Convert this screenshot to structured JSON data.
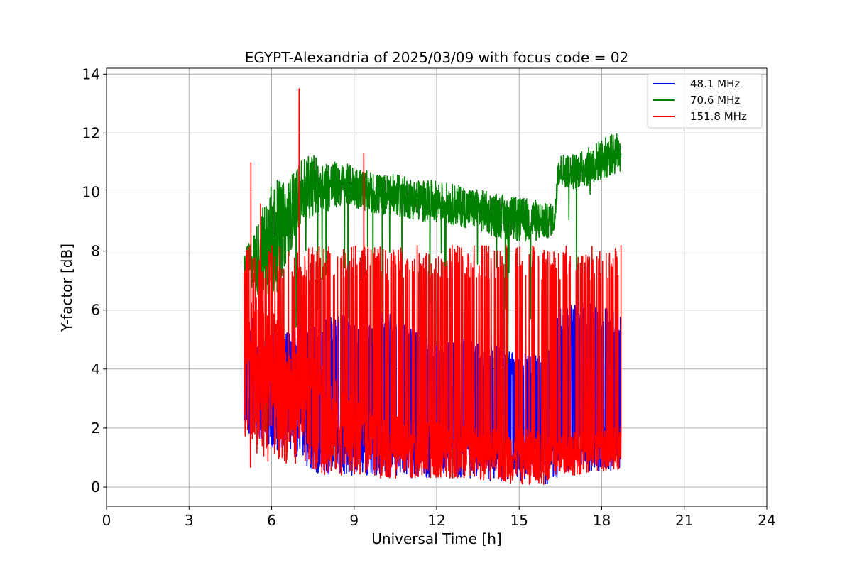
{
  "chart_data": {
    "type": "line",
    "title": "EGYPT-Alexandria of 2025/03/09 with focus code = 02",
    "xlabel": "Universal Time [h]",
    "ylabel": "Y-factor [dB]",
    "xlim": [
      0,
      24
    ],
    "ylim": [
      -0.65,
      14.2
    ],
    "xticks": [
      0,
      3,
      6,
      9,
      12,
      15,
      18,
      21,
      24
    ],
    "yticks": [
      0,
      2,
      4,
      6,
      8,
      10,
      12,
      14
    ],
    "grid": true,
    "legend_position": "top-right",
    "series": [
      {
        "name": "48.1 MHz",
        "legend_label": "  48.1 MHz",
        "color": "#0000ff",
        "envelope": [
          {
            "x": 5.0,
            "low": 1.8,
            "high": 6.0
          },
          {
            "x": 5.5,
            "low": 1.5,
            "high": 5.6
          },
          {
            "x": 6.0,
            "low": 1.3,
            "high": 5.3
          },
          {
            "x": 6.5,
            "low": 1.2,
            "high": 5.2
          },
          {
            "x": 7.0,
            "low": 1.0,
            "high": 5.7
          },
          {
            "x": 7.5,
            "low": 0.5,
            "high": 5.4
          },
          {
            "x": 8.0,
            "low": 0.4,
            "high": 5.8
          },
          {
            "x": 8.5,
            "low": 0.4,
            "high": 5.9
          },
          {
            "x": 9.0,
            "low": 0.4,
            "high": 5.6
          },
          {
            "x": 9.5,
            "low": 0.4,
            "high": 5.5
          },
          {
            "x": 10.0,
            "low": 0.4,
            "high": 5.9
          },
          {
            "x": 10.5,
            "low": 0.3,
            "high": 6.0
          },
          {
            "x": 11.0,
            "low": 0.3,
            "high": 5.4
          },
          {
            "x": 11.5,
            "low": 0.3,
            "high": 5.2
          },
          {
            "x": 12.0,
            "low": 0.3,
            "high": 5.0
          },
          {
            "x": 12.5,
            "low": 0.3,
            "high": 5.0
          },
          {
            "x": 13.0,
            "low": 0.3,
            "high": 5.0
          },
          {
            "x": 13.5,
            "low": 0.3,
            "high": 4.9
          },
          {
            "x": 14.0,
            "low": 0.2,
            "high": 4.8
          },
          {
            "x": 14.5,
            "low": 0.2,
            "high": 4.7
          },
          {
            "x": 15.0,
            "low": 0.2,
            "high": 4.6
          },
          {
            "x": 15.5,
            "low": 0.2,
            "high": 4.5
          },
          {
            "x": 16.0,
            "low": 0.1,
            "high": 4.4
          },
          {
            "x": 16.5,
            "low": 0.4,
            "high": 6.1
          },
          {
            "x": 17.0,
            "low": 0.5,
            "high": 6.2
          },
          {
            "x": 17.5,
            "low": 0.5,
            "high": 6.3
          },
          {
            "x": 18.0,
            "low": 0.5,
            "high": 6.1
          },
          {
            "x": 18.7,
            "low": 0.6,
            "high": 5.9
          }
        ]
      },
      {
        "name": "70.6 MHz",
        "legend_label": "  70.6 MHz",
        "color": "#008000",
        "envelope": [
          {
            "x": 5.0,
            "low": 7.0,
            "high": 7.9
          },
          {
            "x": 5.5,
            "low": 6.5,
            "high": 9.0
          },
          {
            "x": 6.0,
            "low": 6.0,
            "high": 10.5
          },
          {
            "x": 6.5,
            "low": 7.5,
            "high": 10.3
          },
          {
            "x": 7.0,
            "low": 8.8,
            "high": 11.0
          },
          {
            "x": 7.5,
            "low": 9.2,
            "high": 11.3
          },
          {
            "x": 8.0,
            "low": 9.3,
            "high": 11.1
          },
          {
            "x": 8.5,
            "low": 9.5,
            "high": 11.0
          },
          {
            "x": 9.0,
            "low": 9.5,
            "high": 10.9
          },
          {
            "x": 9.5,
            "low": 9.3,
            "high": 10.7
          },
          {
            "x": 10.0,
            "low": 9.2,
            "high": 10.6
          },
          {
            "x": 10.5,
            "low": 9.2,
            "high": 10.6
          },
          {
            "x": 11.0,
            "low": 9.1,
            "high": 10.5
          },
          {
            "x": 11.5,
            "low": 9.0,
            "high": 10.4
          },
          {
            "x": 12.0,
            "low": 9.0,
            "high": 10.4
          },
          {
            "x": 12.5,
            "low": 8.9,
            "high": 10.3
          },
          {
            "x": 13.0,
            "low": 8.8,
            "high": 10.2
          },
          {
            "x": 13.5,
            "low": 8.7,
            "high": 10.1
          },
          {
            "x": 14.0,
            "low": 8.5,
            "high": 10.0
          },
          {
            "x": 14.5,
            "low": 8.4,
            "high": 9.9
          },
          {
            "x": 15.0,
            "low": 8.3,
            "high": 9.8
          },
          {
            "x": 15.5,
            "low": 8.3,
            "high": 9.8
          },
          {
            "x": 16.0,
            "low": 8.4,
            "high": 9.6
          },
          {
            "x": 16.3,
            "low": 8.6,
            "high": 9.6
          },
          {
            "x": 16.4,
            "low": 10.2,
            "high": 11.3
          },
          {
            "x": 17.0,
            "low": 10.1,
            "high": 11.3
          },
          {
            "x": 17.5,
            "low": 10.2,
            "high": 11.5
          },
          {
            "x": 18.0,
            "low": 10.4,
            "high": 11.8
          },
          {
            "x": 18.7,
            "low": 10.7,
            "high": 12.1
          }
        ]
      },
      {
        "name": "151.8 MHz",
        "legend_label": "151.8 MHz",
        "color": "#ff0000",
        "envelope": [
          {
            "x": 5.0,
            "low": 0.7,
            "high": 6.9
          },
          {
            "x": 5.5,
            "low": 0.6,
            "high": 6.5
          },
          {
            "x": 6.0,
            "low": 0.9,
            "high": 6.0
          },
          {
            "x": 6.5,
            "low": 0.8,
            "high": 5.2
          },
          {
            "x": 7.0,
            "low": 0.8,
            "high": 5.0
          },
          {
            "x": 7.5,
            "low": 0.5,
            "high": 4.5
          },
          {
            "x": 8.0,
            "low": 0.4,
            "high": 4.0
          },
          {
            "x": 8.5,
            "low": 0.4,
            "high": 3.5
          },
          {
            "x": 9.0,
            "low": 0.4,
            "high": 3.0
          },
          {
            "x": 9.5,
            "low": 0.4,
            "high": 2.8
          },
          {
            "x": 10.0,
            "low": 0.3,
            "high": 2.5
          },
          {
            "x": 11.0,
            "low": 0.3,
            "high": 2.3
          },
          {
            "x": 12.0,
            "low": 0.3,
            "high": 2.2
          },
          {
            "x": 13.0,
            "low": 0.3,
            "high": 2.1
          },
          {
            "x": 14.0,
            "low": 0.2,
            "high": 2.0
          },
          {
            "x": 15.0,
            "low": 0.1,
            "high": 2.0
          },
          {
            "x": 16.0,
            "low": 0.05,
            "high": 1.9
          },
          {
            "x": 16.5,
            "low": 0.5,
            "high": 1.8
          },
          {
            "x": 17.0,
            "low": 0.4,
            "high": 1.9
          },
          {
            "x": 18.0,
            "low": 0.5,
            "high": 2.0
          },
          {
            "x": 18.7,
            "low": 0.6,
            "high": 2.1
          }
        ],
        "spike_high_typical": 8.2,
        "peaks": [
          {
            "x": 5.25,
            "y": 11.0
          },
          {
            "x": 5.6,
            "y": 9.6
          },
          {
            "x": 7.0,
            "y": 13.5
          },
          {
            "x": 9.35,
            "y": 11.3
          },
          {
            "x": 18.7,
            "y": 8.2
          }
        ]
      }
    ]
  }
}
